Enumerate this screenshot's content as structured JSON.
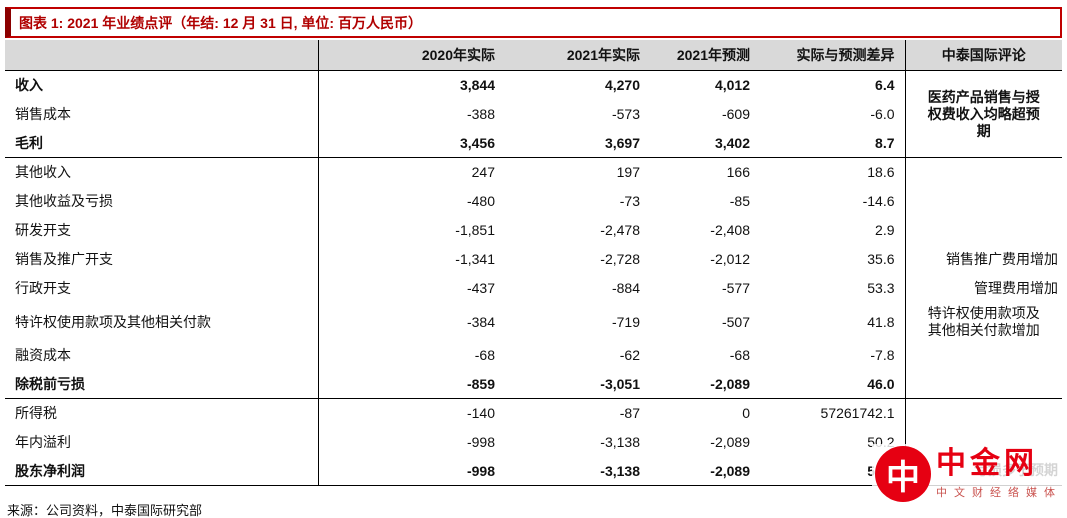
{
  "title": "图表 1: 2021 年业绩点评（年结: 12 月 31 日, 单位: 百万人民币）",
  "source": "来源：公司资料，中泰国际研究部",
  "colors": {
    "accent_red": "#C00000",
    "header_gray": "#D9D9D9",
    "watermark_red": "#E60012"
  },
  "table": {
    "columns": [
      "",
      "2020年实际",
      "2021年实际",
      "2021年预测",
      "实际与预测差异",
      "中泰国际评论"
    ],
    "rows": [
      {
        "label": "收入",
        "bold": true,
        "values": [
          "3,844",
          "4,270",
          "4,012",
          "6.4"
        ],
        "comment": "医药产品销售与授权费收入均略超预期",
        "comment_rowspan": 3
      },
      {
        "label": "销售成本",
        "values": [
          "-388",
          "-573",
          "-609",
          "-6.0"
        ],
        "comment_merged": true
      },
      {
        "label": "毛利",
        "bold": true,
        "values": [
          "3,456",
          "3,697",
          "3,402",
          "8.7"
        ],
        "rule": true,
        "comment_merged": true
      },
      {
        "label": "其他收入",
        "values": [
          "247",
          "197",
          "166",
          "18.6"
        ],
        "comment": ""
      },
      {
        "label": "其他收益及亏损",
        "values": [
          "-480",
          "-73",
          "-85",
          "-14.6"
        ],
        "comment": ""
      },
      {
        "label": "研发开支",
        "values": [
          "-1,851",
          "-2,478",
          "-2,408",
          "2.9"
        ],
        "comment": ""
      },
      {
        "label": "销售及推广开支",
        "values": [
          "-1,341",
          "-2,728",
          "-2,012",
          "35.6"
        ],
        "comment": "销售推广费用增加"
      },
      {
        "label": "行政开支",
        "values": [
          "-437",
          "-884",
          "-577",
          "53.3"
        ],
        "comment": "管理费用增加"
      },
      {
        "label": "特许权使用款项及其他相关付款",
        "values": [
          "-384",
          "-719",
          "-507",
          "41.8"
        ],
        "comment": "特许权使用款项及其他相关付款增加"
      },
      {
        "label": "融资成本",
        "values": [
          "-68",
          "-62",
          "-68",
          "-7.8"
        ],
        "comment": ""
      },
      {
        "label": "除税前亏损",
        "bold": true,
        "values": [
          "-859",
          "-3,051",
          "-2,089",
          "46.0"
        ],
        "rule": true,
        "comment": ""
      },
      {
        "label": "所得税",
        "values": [
          "-140",
          "-87",
          "0",
          "57261742.1"
        ],
        "comment": ""
      },
      {
        "label": "年内溢利",
        "values": [
          "-998",
          "-3,138",
          "-2,089",
          "50.2"
        ],
        "comment": ""
      },
      {
        "label": "股东净利润",
        "bold": true,
        "values": [
          "-998",
          "-3,138",
          "-2,089",
          "50.2"
        ],
        "rule": true,
        "comment": "亏损多于预期"
      }
    ]
  },
  "watermark": {
    "logo_glyph": "中",
    "name": "中金网",
    "subtitle": "中文财经络媒体"
  }
}
